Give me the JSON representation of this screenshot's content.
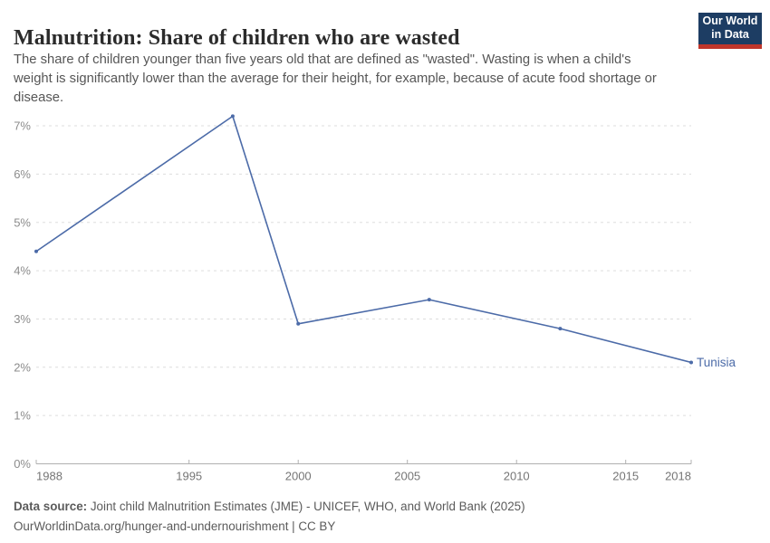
{
  "header": {
    "title": "Malnutrition: Share of children who are wasted",
    "logo": {
      "line1": "Our World",
      "line2": "in Data",
      "bg_color": "#1d3d63",
      "accent_color": "#c0362b"
    }
  },
  "subtitle": {
    "lines": [
      "The share of children younger than five years old that are defined as \"wasted\". Wasting is when a child's",
      "weight is significantly lower than the average for their height, for example, because of acute food shortage or",
      "disease."
    ]
  },
  "chart_data": {
    "type": "line",
    "title": "Malnutrition: Share of children who are wasted",
    "xlabel": "",
    "ylabel": "",
    "unit": "%",
    "xlim": [
      1988,
      2018
    ],
    "ylim": [
      0,
      7.2
    ],
    "x_ticks": [
      1988,
      1995,
      2000,
      2005,
      2010,
      2015,
      2018
    ],
    "y_ticks": [
      0,
      1,
      2,
      3,
      4,
      5,
      6,
      7
    ],
    "y_tick_suffix": "%",
    "grid": "horizontal-dashed",
    "grid_color": "#dddddd",
    "axis_color": "#b0b0b0",
    "legend_position": "end-of-line",
    "series": [
      {
        "name": "Tunisia",
        "color": "#4C6BA8",
        "points": [
          {
            "x": 1988,
            "y": 4.4
          },
          {
            "x": 1997,
            "y": 7.2
          },
          {
            "x": 2000,
            "y": 2.9
          },
          {
            "x": 2006,
            "y": 3.4
          },
          {
            "x": 2012,
            "y": 2.8
          },
          {
            "x": 2018,
            "y": 2.1
          }
        ]
      }
    ]
  },
  "footer": {
    "datasource_label": "Data source:",
    "datasource_text": " Joint child Malnutrition Estimates (JME) - UNICEF, WHO, and World Bank (2025)",
    "link_line": "OurWorldinData.org/hunger-and-undernourishment | CC BY"
  }
}
